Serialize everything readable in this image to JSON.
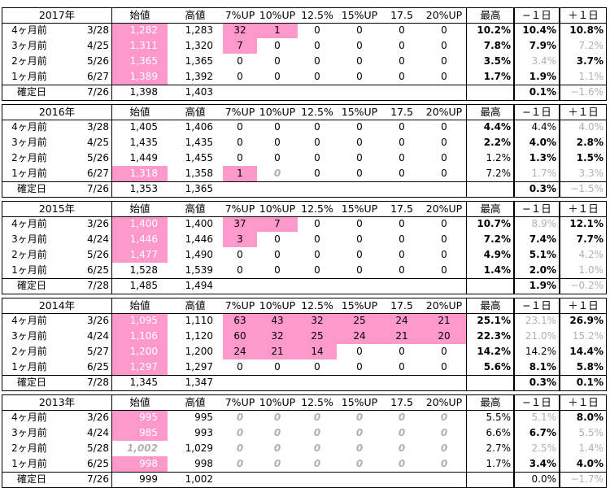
{
  "columns": [
    "始値",
    "高値",
    "7%UP",
    "10%UP",
    "12.5%",
    "15%UP",
    "17.5",
    "20%UP",
    "最高",
    "−１日",
    "＋１日"
  ],
  "blocks": [
    {
      "year": "2017年",
      "rows": [
        {
          "label": "4ヶ月前",
          "date": "3/28",
          "open": "1,282",
          "high": "1,283",
          "u7": "32",
          "u10": "1",
          "u12": "0",
          "u15": "0",
          "u17": "0",
          "u20": "0",
          "max": "10.2%",
          "m1": "10.4%",
          "p1": "10.8%"
        },
        {
          "label": "3ヶ月前",
          "date": "4/25",
          "open": "1,311",
          "high": "1,320",
          "u7": "7",
          "u10": "0",
          "u12": "0",
          "u15": "0",
          "u17": "0",
          "u20": "0",
          "max": "7.8%",
          "m1": "7.9%",
          "p1": "7.2%"
        },
        {
          "label": "2ヶ月前",
          "date": "5/26",
          "open": "1,365",
          "high": "1,365",
          "u7": "0",
          "u10": "0",
          "u12": "0",
          "u15": "0",
          "u17": "0",
          "u20": "0",
          "max": "3.5%",
          "m1": "3.4%",
          "p1": "3.7%"
        },
        {
          "label": "1ヶ月前",
          "date": "6/27",
          "open": "1,389",
          "high": "1,392",
          "u7": "0",
          "u10": "0",
          "u12": "0",
          "u15": "0",
          "u17": "0",
          "u20": "0",
          "max": "1.7%",
          "m1": "1.9%",
          "p1": "1.1%"
        }
      ],
      "confirm": {
        "label": "確定日",
        "date": "7/26",
        "open": "1,398",
        "high": "1,403",
        "m1": "0.1%",
        "p1": "−1.6%"
      }
    },
    {
      "year": "2016年",
      "rows": [
        {
          "label": "4ヶ月前",
          "date": "3/28",
          "open": "1,405",
          "high": "1,406",
          "u7": "0",
          "u10": "0",
          "u12": "0",
          "u15": "0",
          "u17": "0",
          "u20": "0",
          "max": "4.4%",
          "m1": "4.4%",
          "p1": "4.0%"
        },
        {
          "label": "3ヶ月前",
          "date": "4/25",
          "open": "1,435",
          "high": "1,435",
          "u7": "0",
          "u10": "0",
          "u12": "0",
          "u15": "0",
          "u17": "0",
          "u20": "0",
          "max": "2.2%",
          "m1": "4.0%",
          "p1": "2.8%"
        },
        {
          "label": "2ヶ月前",
          "date": "5/26",
          "open": "1,449",
          "high": "1,455",
          "u7": "0",
          "u10": "0",
          "u12": "0",
          "u15": "0",
          "u17": "0",
          "u20": "0",
          "max": "1.2%",
          "m1": "1.3%",
          "p1": "1.5%"
        },
        {
          "label": "1ヶ月前",
          "date": "6/27",
          "open": "1,318",
          "high": "1,358",
          "u7": "1",
          "u10": "0",
          "u12": "0",
          "u15": "0",
          "u17": "0",
          "u20": "0",
          "max": "7.2%",
          "m1": "1.7%",
          "p1": "3.3%"
        }
      ],
      "confirm": {
        "label": "確定日",
        "date": "7/26",
        "open": "1,353",
        "high": "1,365",
        "m1": "0.3%",
        "p1": "−1.5%"
      }
    },
    {
      "year": "2015年",
      "rows": [
        {
          "label": "4ヶ月前",
          "date": "3/26",
          "open": "1,400",
          "high": "1,400",
          "u7": "37",
          "u10": "7",
          "u12": "0",
          "u15": "0",
          "u17": "0",
          "u20": "0",
          "max": "10.7%",
          "m1": "8.9%",
          "p1": "12.1%"
        },
        {
          "label": "3ヶ月前",
          "date": "4/24",
          "open": "1,446",
          "high": "1,446",
          "u7": "3",
          "u10": "0",
          "u12": "0",
          "u15": "0",
          "u17": "0",
          "u20": "0",
          "max": "7.2%",
          "m1": "7.4%",
          "p1": "7.7%"
        },
        {
          "label": "2ヶ月前",
          "date": "5/26",
          "open": "1,477",
          "high": "1,490",
          "u7": "0",
          "u10": "0",
          "u12": "0",
          "u15": "0",
          "u17": "0",
          "u20": "0",
          "max": "4.9%",
          "m1": "5.1%",
          "p1": "4.2%"
        },
        {
          "label": "1ヶ月前",
          "date": "6/25",
          "open": "1,528",
          "high": "1,539",
          "u7": "0",
          "u10": "0",
          "u12": "0",
          "u15": "0",
          "u17": "0",
          "u20": "0",
          "max": "1.4%",
          "m1": "2.0%",
          "p1": "1.0%"
        }
      ],
      "confirm": {
        "label": "確定日",
        "date": "7/28",
        "open": "1,485",
        "high": "1,494",
        "m1": "1.9%",
        "p1": "−0.2%"
      }
    },
    {
      "year": "2014年",
      "rows": [
        {
          "label": "4ヶ月前",
          "date": "3/26",
          "open": "1,095",
          "high": "1,110",
          "u7": "63",
          "u10": "43",
          "u12": "32",
          "u15": "25",
          "u17": "24",
          "u20": "21",
          "max": "25.1%",
          "m1": "23.1%",
          "p1": "26.9%"
        },
        {
          "label": "3ヶ月前",
          "date": "4/24",
          "open": "1,106",
          "high": "1,120",
          "u7": "60",
          "u10": "32",
          "u12": "25",
          "u15": "24",
          "u17": "21",
          "u20": "20",
          "max": "22.3%",
          "m1": "21.0%",
          "p1": "15.2%"
        },
        {
          "label": "2ヶ月前",
          "date": "5/27",
          "open": "1,200",
          "high": "1,200",
          "u7": "24",
          "u10": "21",
          "u12": "14",
          "u15": "0",
          "u17": "0",
          "u20": "0",
          "max": "14.2%",
          "m1": "14.2%",
          "p1": "14.4%"
        },
        {
          "label": "1ヶ月前",
          "date": "6/25",
          "open": "1,297",
          "high": "1,297",
          "u7": "0",
          "u10": "0",
          "u12": "0",
          "u15": "0",
          "u17": "0",
          "u20": "0",
          "max": "5.6%",
          "m1": "8.1%",
          "p1": "5.8%"
        }
      ],
      "confirm": {
        "label": "確定日",
        "date": "7/28",
        "open": "1,345",
        "high": "1,347",
        "m1": "0.3%",
        "p1": "0.1%"
      }
    },
    {
      "year": "2013年",
      "rows": [
        {
          "label": "4ヶ月前",
          "date": "3/26",
          "open": "995",
          "high": "995",
          "u7": "0",
          "u10": "0",
          "u12": "0",
          "u15": "0",
          "u17": "0",
          "u20": "0",
          "max": "5.5%",
          "m1": "5.1%",
          "p1": "8.0%"
        },
        {
          "label": "3ヶ月前",
          "date": "4/24",
          "open": "985",
          "high": "993",
          "u7": "0",
          "u10": "0",
          "u12": "0",
          "u15": "0",
          "u17": "0",
          "u20": "0",
          "max": "6.6%",
          "m1": "6.7%",
          "p1": "5.5%"
        },
        {
          "label": "2ヶ月前",
          "date": "5/28",
          "open": "1,002",
          "high": "1,029",
          "u7": "0",
          "u10": "0",
          "u12": "0",
          "u15": "0",
          "u17": "0",
          "u20": "0",
          "max": "2.7%",
          "m1": "2.5%",
          "p1": "1.4%"
        },
        {
          "label": "1ヶ月前",
          "date": "6/25",
          "open": "998",
          "high": "998",
          "u7": "0",
          "u10": "0",
          "u12": "0",
          "u15": "0",
          "u17": "0",
          "u20": "0",
          "max": "1.7%",
          "m1": "3.4%",
          "p1": "4.0%"
        }
      ],
      "confirm": {
        "label": "確定日",
        "date": "7/26",
        "open": "999",
        "high": "1,002",
        "m1": "0.0%",
        "p1": "−1.7%"
      }
    }
  ]
}
